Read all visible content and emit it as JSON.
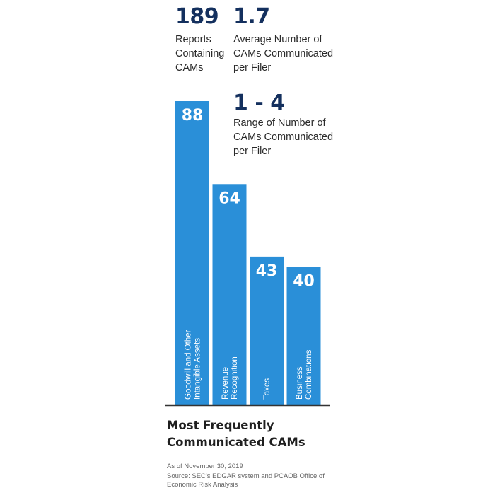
{
  "stats": [
    {
      "value": "189",
      "label": "Reports\nContaining\nCAMs"
    },
    {
      "value": "1.7",
      "label": "Average Number of\nCAMs Communicated\nper Filer"
    },
    {
      "value": "1 - 4",
      "label": "Range of Number of\nCAMs Communicated\nper Filer"
    }
  ],
  "chart_data": {
    "type": "bar",
    "title": "Most Frequently\nCommunicated CAMs",
    "categories": [
      "Goodwill and Other\nIntangible Assets",
      "Revenue\nRecognition",
      "Taxes",
      "Business\nCombinations"
    ],
    "values": [
      88,
      64,
      43,
      40
    ],
    "ylim": [
      0,
      88
    ],
    "grid": false,
    "legend": "none",
    "bar_color": "#2a8fd8"
  },
  "notes": {
    "as_of": "As of November 30, 2019",
    "source": "Source: SEC's EDGAR system and PCAOB Office of\nEconomic Risk Analysis"
  }
}
